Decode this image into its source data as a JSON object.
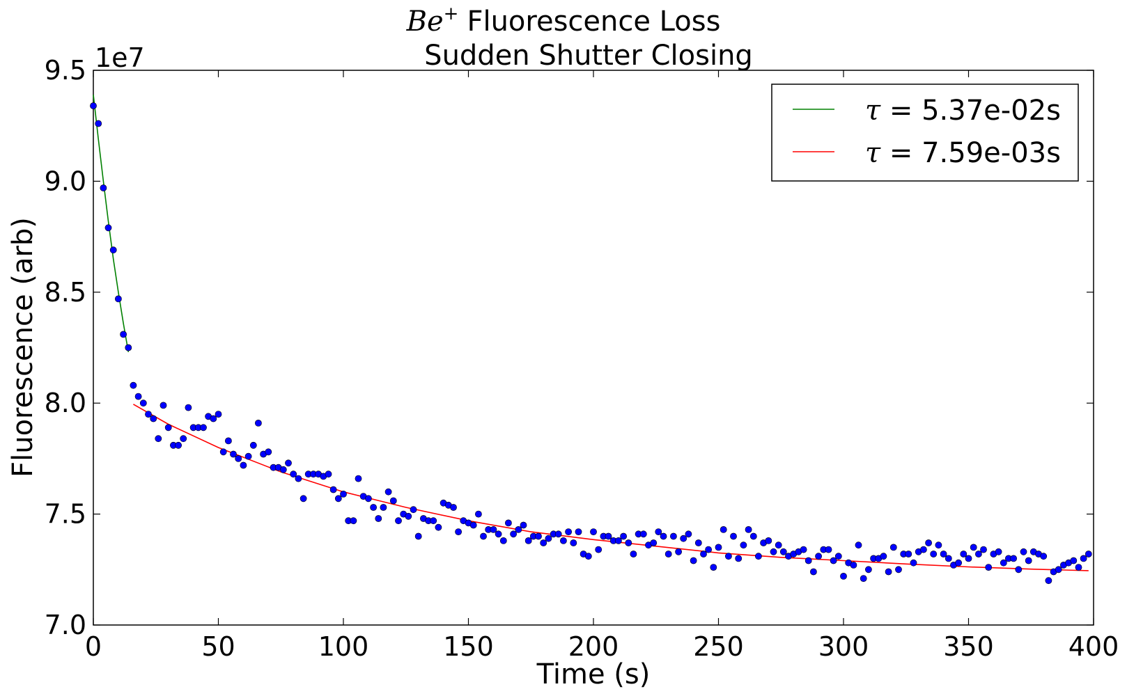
{
  "chart_data": {
    "type": "scatter",
    "title_line1_math": "Be",
    "title_line1_sup": "+",
    "title_line1_text": "Fluorescence Loss",
    "title_line2": "Sudden Shutter Closing",
    "xlabel": "Time (s)",
    "ylabel": "Fluorescence (arb)",
    "y_offset_label": "1e7",
    "xlim": [
      0,
      400
    ],
    "ylim": [
      7.0,
      9.5
    ],
    "y_scale_factor": 10000000,
    "xticks": [
      "0",
      "50",
      "100",
      "150",
      "200",
      "250",
      "300",
      "350",
      "400"
    ],
    "yticks": [
      "7.0",
      "7.5",
      "8.0",
      "8.5",
      "9.0",
      "9.5"
    ],
    "grid": false,
    "legend_position": "top-right",
    "colors": {
      "points": "#0000ff",
      "fit_fast": "#008000",
      "fit_slow": "#ff0000"
    },
    "fits": [
      {
        "tau_symbol": "τ",
        "label": " = 5.37e-02s",
        "color": "#008000",
        "x": [
          0,
          2,
          4,
          6,
          8,
          10,
          12,
          14
        ],
        "y": [
          9.39,
          9.19,
          9.0,
          8.82,
          8.65,
          8.5,
          8.36,
          8.23
        ]
      },
      {
        "tau_symbol": "τ",
        "label": " = 7.59e-03s",
        "color": "#ff0000",
        "x": [
          16,
          30,
          50,
          75,
          100,
          125,
          150,
          175,
          200,
          225,
          250,
          275,
          300,
          325,
          350,
          375,
          398
        ],
        "y": [
          7.995,
          7.905,
          7.8,
          7.69,
          7.6,
          7.53,
          7.47,
          7.42,
          7.385,
          7.355,
          7.325,
          7.305,
          7.29,
          7.275,
          7.262,
          7.252,
          7.245
        ]
      }
    ],
    "points": {
      "x": [
        0,
        2,
        4,
        6,
        8,
        10,
        12,
        14,
        16,
        18,
        20,
        22,
        24,
        26,
        28,
        30,
        32,
        34,
        36,
        38,
        40,
        42,
        44,
        46,
        48,
        50,
        52,
        54,
        56,
        58,
        60,
        62,
        64,
        66,
        68,
        70,
        72,
        74,
        76,
        78,
        80,
        82,
        84,
        86,
        88,
        90,
        92,
        94,
        96,
        98,
        100,
        102,
        104,
        106,
        108,
        110,
        112,
        114,
        116,
        118,
        120,
        122,
        124,
        126,
        128,
        130,
        132,
        134,
        136,
        138,
        140,
        142,
        144,
        146,
        148,
        150,
        152,
        154,
        156,
        158,
        160,
        162,
        164,
        166,
        168,
        170,
        172,
        174,
        176,
        178,
        180,
        182,
        184,
        186,
        188,
        190,
        192,
        194,
        196,
        198,
        200,
        202,
        204,
        206,
        208,
        210,
        212,
        214,
        216,
        218,
        220,
        222,
        224,
        226,
        228,
        230,
        232,
        234,
        236,
        238,
        240,
        242,
        244,
        246,
        248,
        250,
        252,
        254,
        256,
        258,
        260,
        262,
        264,
        266,
        268,
        270,
        272,
        274,
        276,
        278,
        280,
        282,
        284,
        286,
        288,
        290,
        292,
        294,
        296,
        298,
        300,
        302,
        304,
        306,
        308,
        310,
        312,
        314,
        316,
        318,
        320,
        322,
        324,
        326,
        328,
        330,
        332,
        334,
        336,
        338,
        340,
        342,
        344,
        346,
        348,
        350,
        352,
        354,
        356,
        358,
        360,
        362,
        364,
        366,
        368,
        370,
        372,
        374,
        376,
        378,
        380,
        382,
        384,
        386,
        388,
        390,
        392,
        394,
        396,
        398
      ],
      "y": [
        9.34,
        9.26,
        8.97,
        8.79,
        8.69,
        8.47,
        8.31,
        8.25,
        8.08,
        8.03,
        8.0,
        7.95,
        7.93,
        7.84,
        7.99,
        7.89,
        7.81,
        7.81,
        7.84,
        7.98,
        7.89,
        7.89,
        7.89,
        7.94,
        7.93,
        7.95,
        7.78,
        7.83,
        7.77,
        7.75,
        7.72,
        7.76,
        7.81,
        7.91,
        7.77,
        7.78,
        7.71,
        7.71,
        7.7,
        7.73,
        7.68,
        7.66,
        7.57,
        7.68,
        7.68,
        7.68,
        7.67,
        7.68,
        7.61,
        7.57,
        7.59,
        7.47,
        7.47,
        7.66,
        7.58,
        7.57,
        7.53,
        7.48,
        7.53,
        7.6,
        7.56,
        7.47,
        7.5,
        7.49,
        7.52,
        7.4,
        7.48,
        7.47,
        7.47,
        7.44,
        7.55,
        7.54,
        7.53,
        7.42,
        7.47,
        7.46,
        7.45,
        7.5,
        7.4,
        7.43,
        7.43,
        7.41,
        7.38,
        7.46,
        7.41,
        7.43,
        7.45,
        7.38,
        7.4,
        7.4,
        7.37,
        7.39,
        7.41,
        7.41,
        7.38,
        7.42,
        7.37,
        7.42,
        7.32,
        7.31,
        7.42,
        7.34,
        7.4,
        7.4,
        7.38,
        7.38,
        7.4,
        7.37,
        7.32,
        7.41,
        7.41,
        7.36,
        7.37,
        7.42,
        7.4,
        7.32,
        7.4,
        7.33,
        7.39,
        7.41,
        7.29,
        7.37,
        7.32,
        7.34,
        7.26,
        7.35,
        7.43,
        7.31,
        7.4,
        7.3,
        7.36,
        7.43,
        7.4,
        7.31,
        7.37,
        7.38,
        7.33,
        7.36,
        7.33,
        7.31,
        7.32,
        7.33,
        7.34,
        7.29,
        7.24,
        7.31,
        7.34,
        7.34,
        7.29,
        7.31,
        7.22,
        7.28,
        7.27,
        7.36,
        7.21,
        7.25,
        7.3,
        7.3,
        7.31,
        7.24,
        7.35,
        7.25,
        7.32,
        7.32,
        7.28,
        7.33,
        7.34,
        7.37,
        7.32,
        7.36,
        7.32,
        7.3,
        7.27,
        7.28,
        7.32,
        7.3,
        7.35,
        7.32,
        7.34,
        7.26,
        7.32,
        7.33,
        7.28,
        7.3,
        7.3,
        7.25,
        7.33,
        7.29,
        7.33,
        7.32,
        7.31,
        7.2,
        7.24,
        7.25,
        7.27,
        7.28,
        7.29,
        7.26,
        7.3,
        7.32
      ]
    }
  }
}
